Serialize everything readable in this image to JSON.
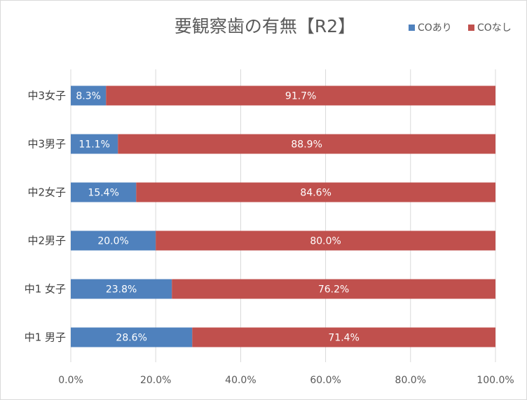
{
  "chart_data": {
    "type": "bar",
    "orientation": "horizontal",
    "stacked": "percent",
    "title": "要観察歯の有無【R2】",
    "categories": [
      "中3女子",
      "中3男子",
      "中2女子",
      "中2男子",
      "中1 女子",
      "中1 男子"
    ],
    "series": [
      {
        "name": "COあり",
        "color": "#4f81bd",
        "values": [
          8.3,
          11.1,
          15.4,
          20.0,
          23.8,
          28.6
        ],
        "labels": [
          "8.3%",
          "11.1%",
          "15.4%",
          "20.0%",
          "23.8%",
          "28.6%"
        ]
      },
      {
        "name": "COなし",
        "color": "#c0504d",
        "values": [
          91.7,
          88.9,
          84.6,
          80.0,
          76.2,
          71.4
        ],
        "labels": [
          "91.7%",
          "88.9%",
          "84.6%",
          "80.0%",
          "76.2%",
          "71.4%"
        ]
      }
    ],
    "xlim": [
      0,
      100
    ],
    "xticks": [
      0,
      20,
      40,
      60,
      80,
      100
    ],
    "xtick_labels": [
      "0.0%",
      "20.0%",
      "40.0%",
      "60.0%",
      "80.0%",
      "100.0%"
    ],
    "grid": "vertical",
    "legend": "top-right"
  }
}
